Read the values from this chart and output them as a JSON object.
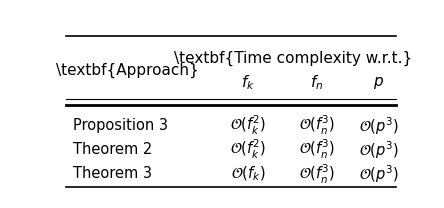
{
  "group_header": "\\textbf{Time complexity w.r.t.}",
  "rows": [
    [
      "Proposition 3",
      "$\\mathcal{O}(f_k^2)$",
      "$\\mathcal{O}(f_n^3)$",
      "$\\mathcal{O}(p^3)$"
    ],
    [
      "Theorem 2",
      "$\\mathcal{O}(f_k^2)$",
      "$\\mathcal{O}(f_n^3)$",
      "$\\mathcal{O}(p^3)$"
    ],
    [
      "Theorem 3",
      "$\\mathcal{O}(f_k)$",
      "$\\mathcal{O}(f_n^3)$",
      "$\\mathcal{O}(p^3)$"
    ]
  ],
  "background_color": "#ffffff",
  "text_color": "#000000",
  "figsize": [
    4.44,
    2.08
  ],
  "dpi": 100
}
